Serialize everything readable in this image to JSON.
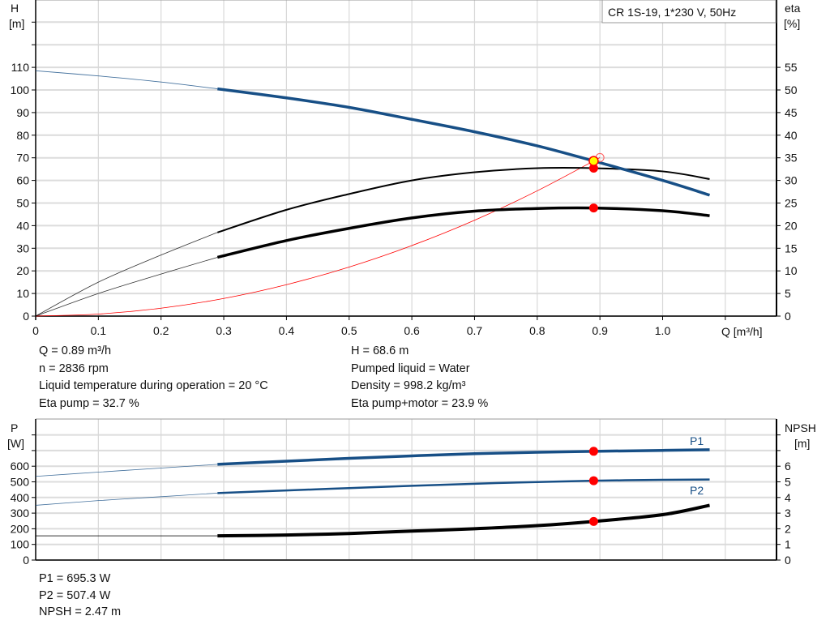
{
  "chart_data": [
    {
      "type": "line",
      "title": "CR 1S-19, 1*230 V, 50Hz",
      "xlabel": "Q [m³/h]",
      "ylabel": "H\n[m]",
      "ylabel_right": "eta\n[%]",
      "xlim": [
        0,
        1.1
      ],
      "ylim": [
        0,
        130
      ],
      "ylim_right": [
        0,
        65
      ],
      "x_ticks": [
        "0",
        "0.1",
        "0.2",
        "0.3",
        "0.4",
        "0.5",
        "0.6",
        "0.7",
        "0.8",
        "0.9",
        "1.0"
      ],
      "y_ticks": [
        0,
        10,
        20,
        30,
        40,
        50,
        60,
        70,
        80,
        90,
        100,
        110
      ],
      "y_ticks_right": [
        0,
        5,
        10,
        15,
        20,
        25,
        30,
        35,
        40,
        45,
        50,
        55
      ],
      "grid": true,
      "series": [
        {
          "id": "head",
          "axis": "left",
          "color": "#174f86",
          "x": [
            0,
            0.1,
            0.2,
            0.29,
            0.4,
            0.5,
            0.6,
            0.7,
            0.8,
            0.89,
            1.0,
            1.075
          ],
          "y": [
            108.5,
            106.2,
            103.5,
            100.5,
            96.5,
            92.3,
            87,
            81.5,
            75.3,
            68.6,
            60,
            53.5
          ]
        },
        {
          "id": "eta-pump",
          "axis": "right",
          "color": "#000000",
          "x": [
            0,
            0.1,
            0.2,
            0.29,
            0.4,
            0.5,
            0.6,
            0.7,
            0.8,
            0.89,
            1.0,
            1.075
          ],
          "y": [
            0,
            7.5,
            13.5,
            18.5,
            23.5,
            27,
            30,
            31.8,
            32.7,
            32.7,
            32,
            30.3
          ]
        },
        {
          "id": "eta-pump-motor",
          "axis": "right",
          "color": "#000000",
          "x": [
            0,
            0.1,
            0.2,
            0.29,
            0.4,
            0.5,
            0.6,
            0.7,
            0.8,
            0.89,
            1.0,
            1.075
          ],
          "y": [
            0,
            5,
            9.3,
            13,
            16.7,
            19.4,
            21.7,
            23.2,
            23.8,
            23.9,
            23.3,
            22.2
          ]
        },
        {
          "id": "system-curve",
          "axis": "left",
          "color": "#ff0000",
          "x": [
            0,
            0.1,
            0.2,
            0.3,
            0.4,
            0.5,
            0.6,
            0.7,
            0.8,
            0.9
          ],
          "y": [
            0,
            0.9,
            3.5,
            7.8,
            13.9,
            21.7,
            31.2,
            42.4,
            55.4,
            70.1
          ]
        }
      ],
      "duty_point": {
        "q": 0.89,
        "h": 68.6,
        "eta_pump": 32.7,
        "eta_pump_motor": 23.9
      }
    },
    {
      "type": "line",
      "ylabel": "P\n[W]",
      "ylabel_right": "NPSH\n[m]",
      "xlim": [
        0,
        1.1
      ],
      "ylim": [
        0,
        900
      ],
      "ylim_right": [
        0,
        9
      ],
      "y_ticks": [
        0,
        100,
        200,
        300,
        400,
        500,
        600
      ],
      "y_ticks_right": [
        0,
        1,
        2,
        3,
        4,
        5,
        6
      ],
      "grid": true,
      "series": [
        {
          "id": "P1",
          "name": "P1",
          "axis": "left",
          "color": "#174f86",
          "x": [
            0,
            0.1,
            0.2,
            0.29,
            0.4,
            0.5,
            0.6,
            0.7,
            0.8,
            0.89,
            1.0,
            1.075
          ],
          "y": [
            535,
            562,
            588,
            612,
            632,
            650,
            666,
            680,
            689,
            695,
            701,
            705
          ]
        },
        {
          "id": "P2",
          "name": "P2",
          "axis": "left",
          "color": "#174f86",
          "x": [
            0,
            0.1,
            0.2,
            0.29,
            0.4,
            0.5,
            0.6,
            0.7,
            0.8,
            0.89,
            1.0,
            1.075
          ],
          "y": [
            350,
            380,
            405,
            428,
            445,
            460,
            475,
            488,
            499,
            507,
            513,
            515
          ]
        },
        {
          "id": "NPSH",
          "axis": "right",
          "color": "#000000",
          "x": [
            0,
            0.1,
            0.2,
            0.29,
            0.4,
            0.5,
            0.6,
            0.7,
            0.8,
            0.89,
            1.0,
            1.075
          ],
          "y": [
            1.55,
            1.55,
            1.55,
            1.55,
            1.6,
            1.7,
            1.85,
            2.0,
            2.2,
            2.47,
            2.9,
            3.5
          ]
        }
      ],
      "duty_point": {
        "q": 0.89,
        "P1": 695.3,
        "P2": 507.4,
        "NPSH": 2.47
      }
    }
  ],
  "info_top": [
    "Q = 0.89 m³/h",
    "n = 2836 rpm",
    "Liquid temperature during operation = 20 °C",
    "Eta pump = 32.7 %",
    "H = 68.6 m",
    "Pumped liquid = Water",
    "Density = 998.2 kg/m³",
    "Eta pump+motor = 23.9 %"
  ],
  "info_bottom": [
    "P1 = 695.3 W",
    "P2 = 507.4 W",
    "NPSH = 2.47 m"
  ],
  "labels": {
    "h": "H",
    "h_unit": "[m]",
    "eta": "eta",
    "eta_unit": "[%]",
    "q": "Q [m³/h]",
    "p": "P",
    "p_unit": "[W]",
    "npsh": "NPSH",
    "npsh_unit": "[m]",
    "p1": "P1",
    "p2": "P2"
  }
}
